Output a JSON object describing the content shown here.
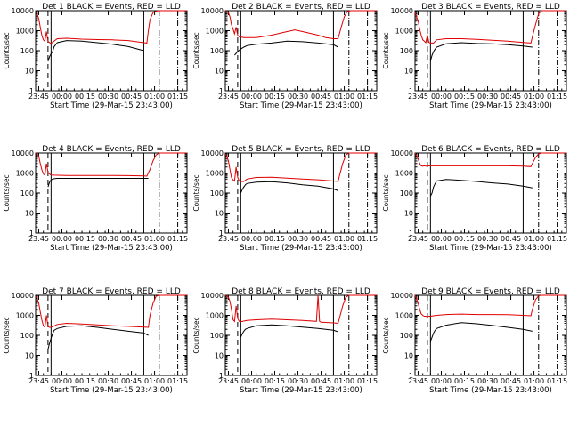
{
  "colors": {
    "background": "#ffffff",
    "axes": "#000000",
    "events": "#000000",
    "lld": "#e00000"
  },
  "chart_data": [
    {
      "type": "line",
      "title": "Det 1 BLACK = Events, RED = LLD",
      "xlabel": "Start Time (29-Mar-15 23:43:00)",
      "ylabel": "Counts/sec",
      "yscale": "log",
      "ylim": [
        1,
        10000
      ],
      "xlim_minutes": [
        0,
        98
      ],
      "xticks": [
        "23:45",
        "00:00",
        "00:15",
        "00:30",
        "00:45",
        "01:00",
        "01:15"
      ],
      "yticks": [
        "1",
        "10",
        "100",
        "1000",
        "10000"
      ],
      "series": [
        {
          "name": "BLACK = Events",
          "color": "#000000",
          "x_minutes": [
            8,
            9,
            10,
            11,
            12,
            14,
            20,
            30,
            40,
            50,
            60,
            70
          ],
          "values": [
            30,
            50,
            70,
            90,
            160,
            250,
            320,
            300,
            250,
            210,
            160,
            100
          ]
        },
        {
          "name": "RED = LLD",
          "color": "#e00000",
          "x_minutes": [
            0,
            1,
            2,
            3,
            4,
            5,
            6,
            7,
            8,
            9,
            10,
            14,
            20,
            30,
            40,
            50,
            60,
            70,
            72,
            73,
            74,
            76,
            78,
            80,
            83,
            98
          ],
          "values": [
            9000,
            7000,
            4000,
            1500,
            600,
            350,
            300,
            900,
            300,
            250,
            230,
            400,
            420,
            380,
            360,
            350,
            320,
            250,
            240,
            1000,
            3500,
            8000,
            9500,
            10000,
            10000,
            10000
          ]
        }
      ]
    },
    {
      "type": "line",
      "title": "Det 2 BLACK = Events, RED = LLD",
      "xlabel": "Start Time (29-Mar-15 23:43:00)",
      "ylabel": "Counts/sec",
      "yscale": "log",
      "ylim": [
        1,
        10000
      ],
      "xlim_minutes": [
        0,
        98
      ],
      "xticks": [
        "23:45",
        "00:00",
        "00:15",
        "00:30",
        "00:45",
        "01:00",
        "01:15"
      ],
      "yticks": [
        "1",
        "10",
        "100",
        "1000",
        "10000"
      ],
      "series": [
        {
          "name": "BLACK = Events",
          "color": "#000000",
          "x_minutes": [
            6,
            8,
            10,
            12,
            14,
            20,
            30,
            40,
            50,
            60,
            70,
            73
          ],
          "values": [
            60,
            90,
            120,
            150,
            180,
            210,
            240,
            300,
            280,
            240,
            200,
            150
          ]
        },
        {
          "name": "RED = LLD",
          "color": "#e00000",
          "x_minutes": [
            0,
            1,
            2,
            3,
            4,
            5,
            6,
            7,
            8,
            9,
            12,
            20,
            30,
            40,
            45,
            50,
            60,
            65,
            70,
            73,
            75,
            77,
            79,
            81,
            83,
            98
          ],
          "values": [
            10000,
            9000,
            8000,
            5000,
            2000,
            1200,
            700,
            1500,
            600,
            500,
            450,
            450,
            600,
            900,
            1100,
            900,
            600,
            450,
            400,
            400,
            1500,
            5000,
            9000,
            10000,
            10000,
            10000
          ]
        }
      ]
    },
    {
      "type": "line",
      "title": "Det 3 BLACK = Events, RED = LLD",
      "xlabel": "Start Time (29-Mar-15 23:43:00)",
      "ylabel": "Counts/sec",
      "yscale": "log",
      "ylim": [
        1,
        10000
      ],
      "xlim_minutes": [
        0,
        98
      ],
      "xticks": [
        "23:45",
        "00:00",
        "00:15",
        "00:30",
        "00:45",
        "01:00",
        "01:15"
      ],
      "yticks": [
        "1",
        "10",
        "100",
        "1000",
        "10000"
      ],
      "series": [
        {
          "name": "BLACK = Events",
          "color": "#000000",
          "x_minutes": [
            10,
            11,
            12,
            13,
            14,
            20,
            30,
            40,
            50,
            60,
            70,
            76
          ],
          "values": [
            30,
            60,
            90,
            120,
            150,
            220,
            250,
            230,
            220,
            200,
            170,
            150
          ]
        },
        {
          "name": "RED = LLD",
          "color": "#e00000",
          "x_minutes": [
            0,
            1,
            2,
            3,
            4,
            5,
            6,
            7,
            8,
            9,
            10,
            12,
            14,
            20,
            30,
            40,
            50,
            60,
            70,
            75,
            76,
            78,
            80,
            82,
            84,
            98
          ],
          "values": [
            8000,
            5000,
            3000,
            1200,
            600,
            350,
            300,
            250,
            600,
            260,
            240,
            240,
            350,
            400,
            400,
            370,
            330,
            300,
            260,
            240,
            500,
            2000,
            7000,
            10000,
            10000,
            10000
          ]
        }
      ]
    },
    {
      "type": "line",
      "title": "Det 4 BLACK = Events, RED = LLD",
      "xlabel": "Start Time (29-Mar-15 23:43:00)",
      "ylabel": "Counts/sec",
      "yscale": "log",
      "ylim": [
        1,
        10000
      ],
      "xlim_minutes": [
        0,
        98
      ],
      "xticks": [
        "23:45",
        "00:00",
        "00:15",
        "00:30",
        "00:45",
        "01:00",
        "01:15"
      ],
      "yticks": [
        "1",
        "10",
        "100",
        "1000",
        "10000"
      ],
      "series": [
        {
          "name": "BLACK = Events",
          "color": "#000000",
          "x_minutes": [
            8,
            9,
            10,
            11,
            12,
            14,
            20,
            30,
            40,
            50,
            60,
            70,
            73
          ],
          "values": [
            200,
            350,
            450,
            500,
            520,
            540,
            540,
            540,
            540,
            540,
            540,
            540,
            540
          ]
        },
        {
          "name": "RED = LLD",
          "color": "#e00000",
          "x_minutes": [
            0,
            1,
            2,
            3,
            4,
            5,
            6,
            7,
            8,
            9,
            10,
            12,
            20,
            30,
            40,
            50,
            60,
            70,
            72,
            74,
            76,
            78,
            80,
            83,
            98
          ],
          "values": [
            10000,
            9000,
            7000,
            3000,
            1500,
            900,
            800,
            3000,
            1100,
            900,
            800,
            780,
            760,
            750,
            750,
            750,
            740,
            720,
            700,
            1500,
            4000,
            8000,
            10000,
            10000,
            10000
          ]
        }
      ]
    },
    {
      "type": "line",
      "title": "Det 5 BLACK = Events, RED = LLD",
      "xlabel": "Start Time (29-Mar-15 23:43:00)",
      "ylabel": "Counts/sec",
      "yscale": "log",
      "ylim": [
        1,
        10000
      ],
      "xlim_minutes": [
        0,
        98
      ],
      "xticks": [
        "23:45",
        "00:00",
        "00:15",
        "00:30",
        "00:45",
        "01:00",
        "01:15"
      ],
      "yticks": [
        "1",
        "10",
        "100",
        "1000",
        "10000"
      ],
      "series": [
        {
          "name": "BLACK = Events",
          "color": "#000000",
          "x_minutes": [
            10,
            11,
            12,
            13,
            14,
            20,
            30,
            40,
            50,
            60,
            70,
            73
          ],
          "values": [
            100,
            150,
            200,
            260,
            300,
            350,
            370,
            320,
            260,
            220,
            160,
            130
          ]
        },
        {
          "name": "RED = LLD",
          "color": "#e00000",
          "x_minutes": [
            0,
            1,
            2,
            3,
            4,
            5,
            6,
            7,
            8,
            9,
            10,
            12,
            14,
            20,
            30,
            40,
            50,
            60,
            70,
            73,
            74,
            76,
            78,
            80,
            83,
            98
          ],
          "values": [
            9000,
            7000,
            4000,
            1500,
            600,
            450,
            400,
            2000,
            600,
            400,
            380,
            380,
            500,
            600,
            620,
            560,
            500,
            460,
            400,
            380,
            800,
            3000,
            8000,
            10000,
            10000,
            10000
          ]
        }
      ]
    },
    {
      "type": "line",
      "title": "Det 6 BLACK = Events, RED = LLD",
      "xlabel": "Start Time (29-Mar-15 23:43:00)",
      "ylabel": "Counts/sec",
      "yscale": "log",
      "ylim": [
        1,
        10000
      ],
      "xlim_minutes": [
        0,
        98
      ],
      "xticks": [
        "23:45",
        "00:00",
        "00:15",
        "00:30",
        "00:45",
        "01:00",
        "01:15"
      ],
      "yticks": [
        "1",
        "10",
        "100",
        "1000",
        "10000"
      ],
      "series": [
        {
          "name": "BLACK = Events",
          "color": "#000000",
          "x_minutes": [
            10,
            11,
            12,
            13,
            14,
            20,
            30,
            40,
            50,
            60,
            70,
            76
          ],
          "values": [
            70,
            100,
            200,
            300,
            400,
            480,
            430,
            380,
            320,
            280,
            220,
            180
          ]
        },
        {
          "name": "RED = LLD",
          "color": "#e00000",
          "x_minutes": [
            0,
            1,
            2,
            3,
            4,
            5,
            6,
            7,
            8,
            9,
            10,
            14,
            20,
            30,
            40,
            50,
            60,
            70,
            75,
            76,
            78,
            80,
            82,
            84,
            98
          ],
          "values": [
            10000,
            8000,
            5000,
            3000,
            2300,
            2200,
            2300,
            2200,
            2200,
            2300,
            2300,
            2300,
            2300,
            2300,
            2300,
            2300,
            2300,
            2200,
            2100,
            3000,
            6000,
            9000,
            10000,
            10000,
            10000
          ]
        }
      ]
    },
    {
      "type": "line",
      "title": "Det 7 BLACK = Events, RED = LLD",
      "xlabel": "Start Time (29-Mar-15 23:43:00)",
      "ylabel": "Counts/sec",
      "yscale": "log",
      "ylim": [
        1,
        10000
      ],
      "xlim_minutes": [
        0,
        98
      ],
      "xticks": [
        "23:45",
        "00:00",
        "00:15",
        "00:30",
        "00:45",
        "01:00",
        "01:15"
      ],
      "yticks": [
        "1",
        "10",
        "100",
        "1000",
        "10000"
      ],
      "series": [
        {
          "name": "BLACK = Events",
          "color": "#000000",
          "x_minutes": [
            8,
            9,
            10,
            11,
            12,
            14,
            20,
            30,
            40,
            50,
            60,
            70,
            73
          ],
          "values": [
            20,
            40,
            70,
            120,
            180,
            220,
            280,
            300,
            250,
            200,
            160,
            130,
            100
          ]
        },
        {
          "name": "RED = LLD",
          "color": "#e00000",
          "x_minutes": [
            0,
            1,
            2,
            3,
            4,
            5,
            6,
            7,
            8,
            9,
            10,
            14,
            20,
            30,
            40,
            50,
            60,
            70,
            73,
            74,
            76,
            78,
            80,
            83,
            98
          ],
          "values": [
            9000,
            7000,
            4000,
            1500,
            600,
            300,
            250,
            1000,
            280,
            250,
            250,
            350,
            400,
            370,
            330,
            300,
            280,
            260,
            250,
            1000,
            4000,
            9000,
            10000,
            10000,
            10000
          ]
        }
      ]
    },
    {
      "type": "line",
      "title": "Det 8 BLACK = Events, RED = LLD",
      "xlabel": "Start Time (29-Mar-15 23:43:00)",
      "ylabel": "Counts/sec",
      "yscale": "log",
      "ylim": [
        1,
        10000
      ],
      "xlim_minutes": [
        0,
        98
      ],
      "xticks": [
        "23:45",
        "00:00",
        "00:15",
        "00:30",
        "00:45",
        "01:00",
        "01:15"
      ],
      "yticks": [
        "1",
        "10",
        "100",
        "1000",
        "10000"
      ],
      "series": [
        {
          "name": "BLACK = Events",
          "color": "#000000",
          "x_minutes": [
            10,
            11,
            12,
            13,
            14,
            20,
            30,
            40,
            50,
            60,
            70,
            73
          ],
          "values": [
            80,
            120,
            160,
            200,
            220,
            300,
            330,
            300,
            260,
            220,
            180,
            150
          ]
        },
        {
          "name": "RED = LLD",
          "color": "#e00000",
          "x_minutes": [
            0,
            1,
            2,
            3,
            4,
            5,
            6,
            7,
            8,
            9,
            10,
            14,
            20,
            30,
            40,
            50,
            59,
            60,
            61,
            62,
            70,
            73,
            74,
            76,
            78,
            80,
            83,
            98
          ],
          "values": [
            10000,
            9000,
            8000,
            5000,
            2000,
            600,
            500,
            3000,
            700,
            500,
            480,
            550,
            600,
            650,
            600,
            550,
            500,
            10000,
            500,
            450,
            420,
            400,
            800,
            3000,
            8000,
            10000,
            10000,
            10000
          ]
        }
      ]
    },
    {
      "type": "line",
      "title": "Det 9 BLACK = Events, RED = LLD",
      "xlabel": "Start Time (29-Mar-15 23:43:00)",
      "ylabel": "Counts/sec",
      "yscale": "log",
      "ylim": [
        1,
        10000
      ],
      "xlim_minutes": [
        0,
        98
      ],
      "xticks": [
        "23:45",
        "00:00",
        "00:15",
        "00:30",
        "00:45",
        "01:00",
        "01:15"
      ],
      "yticks": [
        "1",
        "10",
        "100",
        "1000",
        "10000"
      ],
      "series": [
        {
          "name": "BLACK = Events",
          "color": "#000000",
          "x_minutes": [
            10,
            11,
            12,
            13,
            14,
            20,
            30,
            40,
            50,
            60,
            70,
            76
          ],
          "values": [
            50,
            80,
            130,
            180,
            220,
            320,
            430,
            380,
            310,
            250,
            200,
            160
          ]
        },
        {
          "name": "RED = LLD",
          "color": "#e00000",
          "x_minutes": [
            0,
            1,
            2,
            3,
            4,
            5,
            6,
            7,
            8,
            9,
            10,
            14,
            20,
            30,
            40,
            50,
            60,
            70,
            75,
            76,
            78,
            80,
            82,
            84,
            98
          ],
          "values": [
            10000,
            7000,
            4000,
            2000,
            1200,
            1000,
            900,
            900,
            850,
            900,
            900,
            1000,
            1100,
            1150,
            1100,
            1100,
            1080,
            1000,
            950,
            2000,
            6000,
            9500,
            10000,
            10000,
            10000
          ]
        }
      ]
    }
  ]
}
